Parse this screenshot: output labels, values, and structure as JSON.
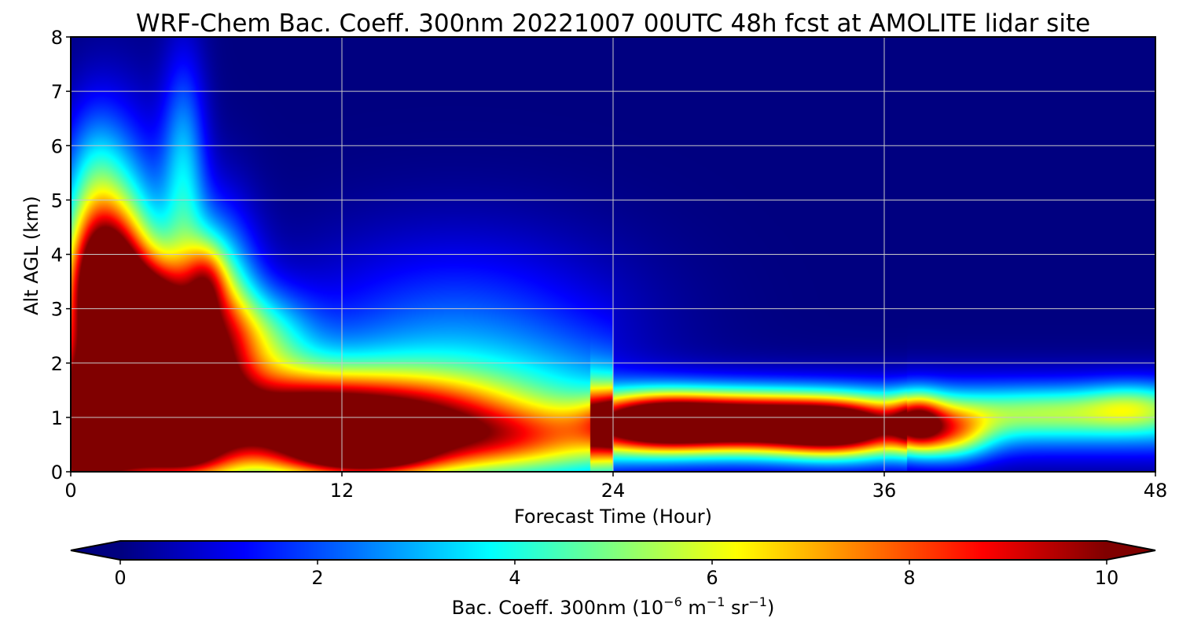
{
  "chart_data": {
    "type": "heatmap",
    "title": "WRF-Chem Bac. Coeff. 300nm  20221007 00UTC 48h fcst at AMOLITE lidar site",
    "xlabel": "Forecast Time (Hour)",
    "ylabel": "Alt AGL (km)",
    "xlim": [
      0,
      48
    ],
    "ylim": [
      0,
      8
    ],
    "xticks": [
      0,
      12,
      24,
      36,
      48
    ],
    "yticks": [
      0,
      1,
      2,
      3,
      4,
      5,
      6,
      7,
      8
    ],
    "grid": true,
    "colormap": "jet",
    "colorbar": {
      "orientation": "horizontal",
      "placement": "bottom",
      "range": [
        0,
        10
      ],
      "ticks": [
        0,
        2,
        4,
        6,
        8,
        10
      ],
      "extend": "both",
      "label_prefix": "Bac. Coeff. 300nm  (10",
      "label_exp1": "−6",
      "label_mid": " m",
      "label_exp2": "−1",
      "label_mid2": " sr",
      "label_exp3": "−1",
      "label_suffix": ")"
    },
    "features": [
      {
        "t": 0.5,
        "z": 1.0,
        "st": 1.2,
        "sz": 2.0,
        "v": 8
      },
      {
        "t": 1.5,
        "z": 3.5,
        "st": 1.0,
        "sz": 0.8,
        "v": 7
      },
      {
        "t": 2.5,
        "z": 3.3,
        "st": 1.2,
        "sz": 1.8,
        "v": 5
      },
      {
        "t": 4.0,
        "z": 2.0,
        "st": 1.5,
        "sz": 1.2,
        "v": 9
      },
      {
        "t": 3.5,
        "z": 3.0,
        "st": 1.2,
        "sz": 0.6,
        "v": 4
      },
      {
        "t": 2.5,
        "z": 0.5,
        "st": 1.2,
        "sz": 0.5,
        "v": 4
      },
      {
        "t": 6.5,
        "z": 2.5,
        "st": 1.2,
        "sz": 1.4,
        "v": 6
      },
      {
        "t": 6.0,
        "z": 3.5,
        "st": 0.6,
        "sz": 0.5,
        "v": 3
      },
      {
        "t": 5.0,
        "z": 0.3,
        "st": 1.2,
        "sz": 0.3,
        "v": 4
      },
      {
        "t": 5.0,
        "z": 5.5,
        "st": 0.7,
        "sz": 1.5,
        "v": 3
      },
      {
        "t": 1.0,
        "z": 5.0,
        "st": 1.0,
        "sz": 1.2,
        "v": 3
      },
      {
        "t": 8.5,
        "z": 2.5,
        "st": 1.5,
        "sz": 0.6,
        "v": 3
      },
      {
        "t": 9.0,
        "z": 1.0,
        "st": 3.0,
        "sz": 0.6,
        "v": 5
      },
      {
        "t": 12.0,
        "z": 0.8,
        "st": 3.0,
        "sz": 0.6,
        "v": 5
      },
      {
        "t": 13.0,
        "z": 0.3,
        "st": 2.0,
        "sz": 0.25,
        "v": 5
      },
      {
        "t": 16.0,
        "z": 0.9,
        "st": 3.0,
        "sz": 0.6,
        "v": 4
      },
      {
        "t": 17.0,
        "z": 2.5,
        "st": 5.0,
        "sz": 1.3,
        "v": 2.0
      },
      {
        "t": 20.0,
        "z": 0.6,
        "st": 3.0,
        "sz": 0.4,
        "v": 3
      },
      {
        "t": 26.0,
        "z": 0.9,
        "st": 2.0,
        "sz": 0.35,
        "v": 8
      },
      {
        "t": 30.0,
        "z": 0.9,
        "st": 2.5,
        "sz": 0.35,
        "v": 8
      },
      {
        "t": 34.0,
        "z": 0.8,
        "st": 2.0,
        "sz": 0.35,
        "v": 8
      },
      {
        "t": 37.5,
        "z": 0.9,
        "st": 0.8,
        "sz": 0.35,
        "v": 5
      },
      {
        "t": 39.0,
        "z": 0.7,
        "st": 1.2,
        "sz": 0.35,
        "v": 4
      },
      {
        "t": 43.0,
        "z": 1.1,
        "st": 3.0,
        "sz": 0.3,
        "v": 2
      },
      {
        "t": 47.0,
        "z": 1.2,
        "st": 1.5,
        "sz": 0.3,
        "v": 2
      }
    ],
    "baselines": [
      {
        "t0": 0,
        "t1": 24,
        "z": 0.8,
        "sz": 1.0,
        "v": 3.5
      },
      {
        "t0": 23,
        "t1": 37,
        "z": 0.9,
        "sz": 0.5,
        "v": 4.5
      },
      {
        "t0": 37,
        "t1": 48,
        "z": 1.0,
        "sz": 0.5,
        "v": 3.5
      }
    ]
  }
}
